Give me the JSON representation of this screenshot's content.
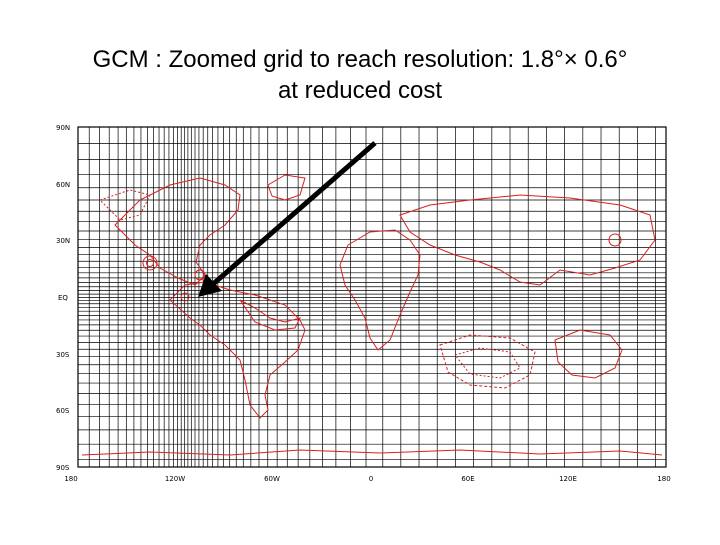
{
  "slide": {
    "title_line1": "GCM : Zoomed grid to reach resolution: 1.8°× 0.6°",
    "title_line2": "at reduced cost"
  },
  "map": {
    "lat_labels": [
      "90N",
      "60N",
      "30N",
      "EQ",
      "30S",
      "60S",
      "90S"
    ],
    "lon_labels": [
      "180",
      "120W",
      "60W",
      "0",
      "60E",
      "120E",
      "180"
    ],
    "grid_color": "#000000",
    "contour_color": "#d62020",
    "arrow_color": "#000000",
    "zoom_center": "120W 10N"
  }
}
